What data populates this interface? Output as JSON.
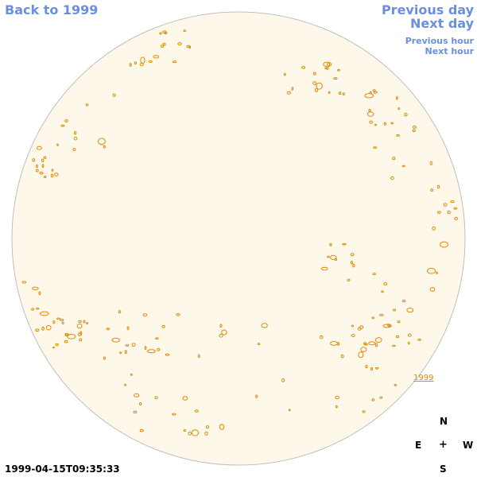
{
  "nav": {
    "back_label": "Back to 1999",
    "prev_day_label": "Previous day",
    "next_day_label": "Next day",
    "prev_hour_label": "Previous hour",
    "next_hour_label": "Next hour"
  },
  "disk": {
    "fill_color": "#fdf8ea",
    "border_color": "#bfbfbf",
    "contour_color": "#e08a00",
    "year_label": "1999"
  },
  "compass": {
    "n": "N",
    "e": "E",
    "center": "+",
    "w": "W",
    "s": "S"
  },
  "timestamp": "1999-04-15T09:35:33"
}
